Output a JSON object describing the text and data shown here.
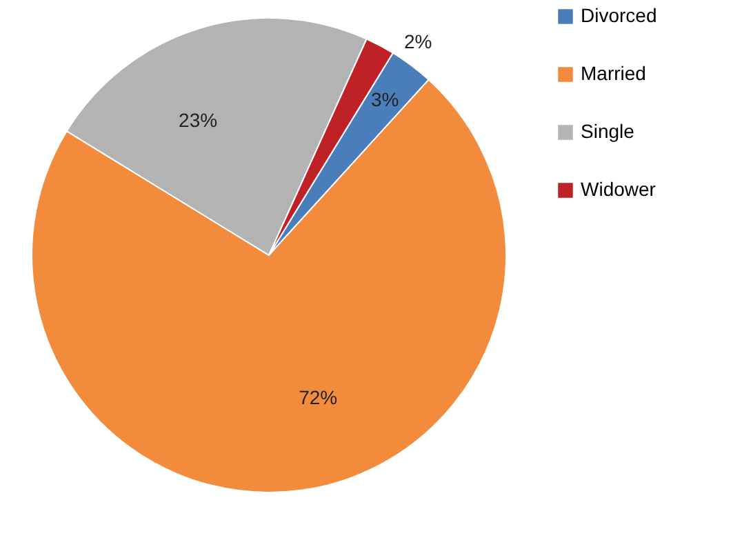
{
  "chart_data": {
    "type": "pie",
    "categories": [
      "Divorced",
      "Married",
      "Single",
      "Widower"
    ],
    "values": [
      3,
      72,
      23,
      2
    ],
    "value_labels": [
      "3%",
      "72%",
      "23%",
      "2%"
    ],
    "colors": [
      "#4a7ebb",
      "#f38b3c",
      "#b3b3b3",
      "#be2126"
    ],
    "legend": "right"
  }
}
